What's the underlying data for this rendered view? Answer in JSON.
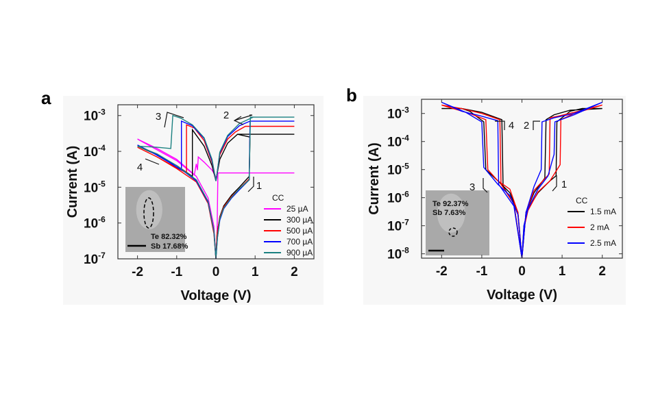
{
  "panels": {
    "a": "a",
    "b": "b"
  },
  "chart_data": [
    {
      "type": "line",
      "panel": "a",
      "xlabel": "Voltage (V)",
      "ylabel": "Current (A)",
      "xlim": [
        -2.5,
        2.5
      ],
      "ylim": [
        1e-07,
        0.002
      ],
      "yscale": "log",
      "xticks": [
        "-2",
        "-1",
        "0",
        "1",
        "2"
      ],
      "xtick_values": [
        -2,
        -1,
        0,
        1,
        2
      ],
      "yticks": [
        {
          "base": "10",
          "exp": "-7"
        },
        {
          "base": "10",
          "exp": "-6"
        },
        {
          "base": "10",
          "exp": "-5"
        },
        {
          "base": "10",
          "exp": "-4"
        },
        {
          "base": "10",
          "exp": "-3"
        }
      ],
      "ytick_values": [
        1e-07,
        1e-06,
        1e-05,
        0.0001,
        0.001
      ],
      "legend_title": "CC",
      "legend_position": "bottom-right",
      "annotations": [
        "1",
        "2",
        "3",
        "4"
      ],
      "inset": {
        "lines": [
          "Te 82.32%",
          "Sb 17.68%"
        ]
      },
      "series": [
        {
          "name": "25  µA",
          "color": "#ff00ff",
          "points": [
            [
              0,
              1e-07
            ],
            [
              0.03,
              5e-07
            ],
            [
              0.05,
              2.5e-05
            ],
            [
              2,
              2.5e-05
            ],
            [
              0.05,
              2.5e-05
            ],
            [
              0.02,
              1.8e-05
            ],
            [
              -0.1,
              3e-05
            ],
            [
              -0.3,
              5e-05
            ],
            [
              -0.45,
              7e-05
            ],
            [
              -0.47,
              3e-05
            ],
            [
              -0.5,
              4.5e-05
            ],
            [
              -0.55,
              2.2e-05
            ],
            [
              -1,
              5.5e-05
            ],
            [
              -1.5,
              0.00011
            ],
            [
              -2,
              0.00022
            ],
            [
              -1.5,
              0.00012
            ],
            [
              -1,
              6e-05
            ],
            [
              -0.5,
              2e-05
            ],
            [
              -0.2,
              5e-06
            ],
            [
              -0.05,
              8e-07
            ],
            [
              0,
              1e-07
            ]
          ]
        },
        {
          "name": "300 µA",
          "color": "#000000",
          "points": [
            [
              0,
              1e-07
            ],
            [
              0.03,
              5e-07
            ],
            [
              0.1,
              1.5e-06
            ],
            [
              0.2,
              3e-06
            ],
            [
              0.4,
              6e-06
            ],
            [
              0.6,
              1e-05
            ],
            [
              0.85,
              2e-05
            ],
            [
              0.87,
              0.00025
            ],
            [
              0.55,
              0.0003
            ],
            [
              2,
              0.0003
            ],
            [
              0.55,
              0.0003
            ],
            [
              0.3,
              0.00017
            ],
            [
              0.1,
              6e-05
            ],
            [
              0.02,
              2e-05
            ],
            [
              0,
              1.5e-05
            ],
            [
              -0.1,
              4e-05
            ],
            [
              -0.3,
              0.00014
            ],
            [
              -0.6,
              0.0004
            ],
            [
              -0.6,
              2e-05
            ],
            [
              -1,
              4e-05
            ],
            [
              -1.5,
              8e-05
            ],
            [
              -2,
              0.00014
            ],
            [
              -1.5,
              8e-05
            ],
            [
              -1,
              4e-05
            ],
            [
              -0.5,
              1.6e-05
            ],
            [
              -0.2,
              4e-06
            ],
            [
              -0.05,
              6e-07
            ],
            [
              0,
              1e-07
            ]
          ]
        },
        {
          "name": "500 µA",
          "color": "#ff0000",
          "points": [
            [
              0,
              1e-07
            ],
            [
              0.03,
              5e-07
            ],
            [
              0.1,
              1.4e-06
            ],
            [
              0.2,
              2.8e-06
            ],
            [
              0.4,
              5.5e-06
            ],
            [
              0.6,
              9e-06
            ],
            [
              0.85,
              1.7e-05
            ],
            [
              0.87,
              0.0005
            ],
            [
              0.75,
              0.0005
            ],
            [
              2,
              0.0005
            ],
            [
              0.75,
              0.0005
            ],
            [
              0.5,
              0.00035
            ],
            [
              0.3,
              0.00022
            ],
            [
              0.1,
              8e-05
            ],
            [
              0.02,
              2e-05
            ],
            [
              0,
              1.5e-05
            ],
            [
              -0.1,
              5e-05
            ],
            [
              -0.3,
              0.0002
            ],
            [
              -0.55,
              0.00045
            ],
            [
              -0.75,
              0.00055
            ],
            [
              -0.75,
              2.5e-05
            ],
            [
              -1,
              3.5e-05
            ],
            [
              -1.5,
              7e-05
            ],
            [
              -2,
              0.00013
            ],
            [
              -1.5,
              7e-05
            ],
            [
              -1,
              3.3e-05
            ],
            [
              -0.5,
              1.4e-05
            ],
            [
              -0.2,
              3.5e-06
            ],
            [
              -0.05,
              5e-07
            ],
            [
              0,
              1e-07
            ]
          ]
        },
        {
          "name": "700 µA",
          "color": "#0000ff",
          "points": [
            [
              0,
              1e-07
            ],
            [
              0.04,
              4e-07
            ],
            [
              0.1,
              1.2e-06
            ],
            [
              0.2,
              2.5e-06
            ],
            [
              0.4,
              5e-06
            ],
            [
              0.6,
              8.5e-06
            ],
            [
              0.85,
              1.6e-05
            ],
            [
              0.87,
              0.0007
            ],
            [
              2,
              0.0007
            ],
            [
              0.87,
              0.0007
            ],
            [
              0.6,
              0.00052
            ],
            [
              0.3,
              0.00026
            ],
            [
              0.1,
              9e-05
            ],
            [
              0.02,
              2e-05
            ],
            [
              0,
              1.5e-05
            ],
            [
              -0.1,
              5.5e-05
            ],
            [
              -0.3,
              0.00023
            ],
            [
              -0.6,
              0.00052
            ],
            [
              -0.88,
              0.0007
            ],
            [
              -0.88,
              3e-05
            ],
            [
              -1.2,
              5e-05
            ],
            [
              -1.6,
              9e-05
            ],
            [
              -2,
              0.00015
            ],
            [
              -1.5,
              8e-05
            ],
            [
              -1,
              4e-05
            ],
            [
              -0.5,
              1.5e-05
            ],
            [
              -0.2,
              3.8e-06
            ],
            [
              -0.05,
              6e-07
            ],
            [
              0,
              1e-07
            ]
          ]
        },
        {
          "name": "900 µA",
          "color": "#1a8080",
          "points": [
            [
              0,
              1e-07
            ],
            [
              0.04,
              4e-07
            ],
            [
              0.1,
              1.3e-06
            ],
            [
              0.2,
              2.6e-06
            ],
            [
              0.4,
              5.2e-06
            ],
            [
              0.6,
              9e-06
            ],
            [
              0.85,
              1.6e-05
            ],
            [
              0.88,
              0.0009
            ],
            [
              2,
              0.0009
            ],
            [
              0.95,
              0.0009
            ],
            [
              0.6,
              0.0006
            ],
            [
              0.3,
              0.00028
            ],
            [
              0.1,
              9.5e-05
            ],
            [
              0.02,
              2e-05
            ],
            [
              0,
              1.5e-05
            ],
            [
              -0.1,
              6e-05
            ],
            [
              -0.3,
              0.00024
            ],
            [
              -0.6,
              0.00055
            ],
            [
              -0.9,
              0.00085
            ],
            [
              -1.1,
              0.001
            ],
            [
              -1.15,
              0.00012
            ],
            [
              -1.5,
              0.00013
            ],
            [
              -2,
              0.00014
            ],
            [
              -1.5,
              8.5e-05
            ],
            [
              -1,
              4e-05
            ],
            [
              -0.5,
              1.6e-05
            ],
            [
              -0.2,
              4e-06
            ],
            [
              -0.05,
              6e-07
            ],
            [
              0,
              1e-07
            ]
          ]
        }
      ]
    },
    {
      "type": "line",
      "panel": "b",
      "xlabel": "Voltage (V)",
      "ylabel": "Current (A)",
      "xlim": [
        -2.5,
        2.5
      ],
      "ylim": [
        7e-09,
        0.0032
      ],
      "yscale": "log",
      "xticks": [
        "-2",
        "-1",
        "0",
        "1",
        "2"
      ],
      "xtick_values": [
        -2,
        -1,
        0,
        1,
        2
      ],
      "yticks": [
        {
          "base": "10",
          "exp": "-8"
        },
        {
          "base": "10",
          "exp": "-7"
        },
        {
          "base": "10",
          "exp": "-6"
        },
        {
          "base": "10",
          "exp": "-5"
        },
        {
          "base": "10",
          "exp": "-4"
        },
        {
          "base": "10",
          "exp": "-3"
        }
      ],
      "ytick_values": [
        1e-08,
        1e-07,
        1e-06,
        1e-05,
        0.0001,
        0.001
      ],
      "legend_title": "CC",
      "legend_position": "bottom-right",
      "annotations": [
        "1",
        "2",
        "3",
        "4"
      ],
      "inset": {
        "lines": [
          "Te 92.37%",
          "Sb 7.63%"
        ]
      },
      "series": [
        {
          "name": "1.5 mA",
          "color": "#000000",
          "points": [
            [
              0,
              7e-09
            ],
            [
              0.05,
              1e-07
            ],
            [
              0.15,
              4e-07
            ],
            [
              0.4,
              1.5e-06
            ],
            [
              0.7,
              4e-06
            ],
            [
              0.85,
              6e-06
            ],
            [
              0.87,
              0.0005
            ],
            [
              1.2,
              0.0012
            ],
            [
              1.5,
              0.0015
            ],
            [
              2,
              0.0015
            ],
            [
              1.2,
              0.0013
            ],
            [
              0.8,
              0.0009
            ],
            [
              0.6,
              0.0006
            ],
            [
              0.57,
              5e-06
            ],
            [
              0.3,
              1.5e-06
            ],
            [
              0.1,
              3e-07
            ],
            [
              0,
              7e-09
            ],
            [
              -0.1,
              3e-07
            ],
            [
              -0.3,
              1.5e-06
            ],
            [
              -0.6,
              4e-06
            ],
            [
              -0.9,
              1e-05
            ],
            [
              -0.95,
              0.0005
            ],
            [
              -1.3,
              0.0012
            ],
            [
              -1.5,
              0.0015
            ],
            [
              -2,
              0.0015
            ],
            [
              -1.5,
              0.0015
            ],
            [
              -1,
              0.0011
            ],
            [
              -0.5,
              0.0006
            ],
            [
              -0.47,
              2.5e-06
            ],
            [
              -0.2,
              6e-07
            ],
            [
              0,
              7e-09
            ]
          ]
        },
        {
          "name": "2 mA",
          "color": "#ff0000",
          "points": [
            [
              0,
              7e-09
            ],
            [
              0.05,
              8e-08
            ],
            [
              0.15,
              3.5e-07
            ],
            [
              0.4,
              1.6e-06
            ],
            [
              0.7,
              4e-06
            ],
            [
              0.95,
              1.5e-05
            ],
            [
              0.97,
              0.0006
            ],
            [
              1.3,
              0.001
            ],
            [
              2,
              0.002
            ],
            [
              1.3,
              0.0011
            ],
            [
              0.9,
              0.0008
            ],
            [
              0.7,
              0.0007
            ],
            [
              0.68,
              7e-06
            ],
            [
              0.3,
              1.8e-06
            ],
            [
              0.1,
              3e-07
            ],
            [
              0,
              7e-09
            ],
            [
              -0.1,
              3e-07
            ],
            [
              -0.3,
              2e-06
            ],
            [
              -0.6,
              4e-06
            ],
            [
              -0.85,
              1e-05
            ],
            [
              -0.9,
              0.0006
            ],
            [
              -1.3,
              0.001
            ],
            [
              -2,
              0.002
            ],
            [
              -1.5,
              0.0015
            ],
            [
              -1,
              0.001
            ],
            [
              -0.55,
              0.0006
            ],
            [
              -0.52,
              3e-06
            ],
            [
              -0.2,
              6e-07
            ],
            [
              0,
              7e-09
            ]
          ]
        },
        {
          "name": "2.5 mA",
          "color": "#0000ff",
          "points": [
            [
              0,
              7e-09
            ],
            [
              0.05,
              1e-07
            ],
            [
              0.15,
              4e-07
            ],
            [
              0.4,
              2e-06
            ],
            [
              0.65,
              6e-06
            ],
            [
              0.75,
              2e-05
            ],
            [
              0.8,
              3.5e-05
            ],
            [
              0.82,
              0.0005
            ],
            [
              1.3,
              0.0009
            ],
            [
              2,
              0.0025
            ],
            [
              1.3,
              0.001
            ],
            [
              0.8,
              0.0007
            ],
            [
              0.5,
              0.0005
            ],
            [
              0.48,
              1e-05
            ],
            [
              0.3,
              2.5e-06
            ],
            [
              0.1,
              3e-07
            ],
            [
              0,
              7e-09
            ],
            [
              -0.1,
              2.5e-07
            ],
            [
              -0.3,
              1.2e-06
            ],
            [
              -0.6,
              3e-06
            ],
            [
              -0.95,
              1.2e-05
            ],
            [
              -1.0,
              0.0005
            ],
            [
              -1.4,
              0.0011
            ],
            [
              -2,
              0.0025
            ],
            [
              -1.5,
              0.0012
            ],
            [
              -1,
              0.0008
            ],
            [
              -0.6,
              0.00055
            ],
            [
              -0.58,
              3e-06
            ],
            [
              -0.2,
              5e-07
            ],
            [
              0,
              7e-09
            ]
          ]
        }
      ]
    }
  ]
}
